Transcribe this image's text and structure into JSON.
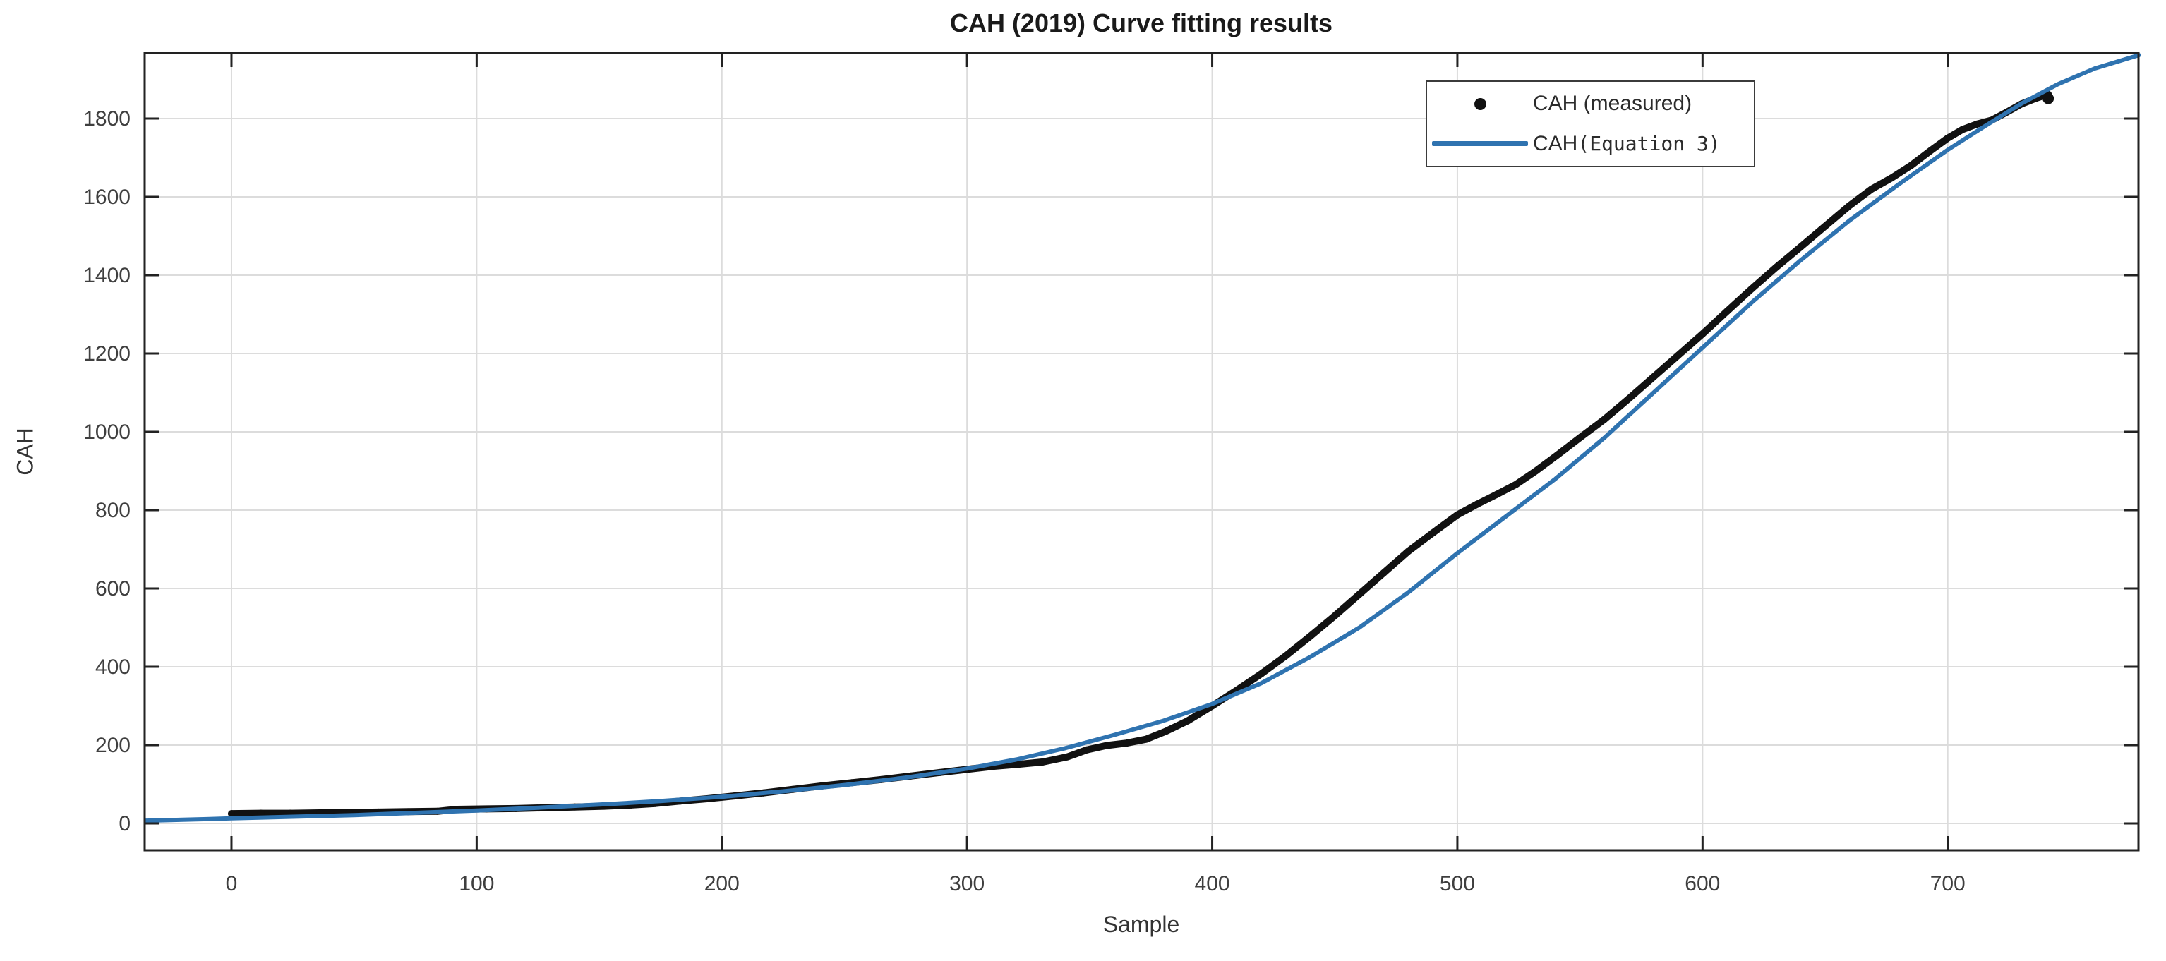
{
  "figure": {
    "background": "#ffffff"
  },
  "chart_data": {
    "type": "line",
    "title": "CAH (2019) Curve fitting results",
    "xlabel": "Sample",
    "ylabel": "CAH",
    "xlim": [
      -35.4,
      777.8
    ],
    "ylim": [
      -68.5,
      1967.6
    ],
    "x_ticks": [
      0,
      100,
      200,
      300,
      400,
      500,
      600,
      700
    ],
    "y_ticks": [
      0,
      200,
      400,
      600,
      800,
      1000,
      1200,
      1400,
      1600,
      1800
    ],
    "grid": true,
    "grid_color": "#dcdcdc",
    "axis_color": "#222222",
    "tick_label_color": "#3f3f3f",
    "legend": {
      "position": "northeast",
      "entries": [
        {
          "marker": "dot",
          "color": "#111111",
          "label": "CAH (measured)",
          "label_suffix": ""
        },
        {
          "marker": "line",
          "color": "#2f73b0",
          "label": "CAH",
          "label_suffix": "(Equation 3)"
        }
      ]
    },
    "series": [
      {
        "name": "CAH (measured)",
        "type": "scatter",
        "color": "#111111",
        "marker_size": 5,
        "points": [
          [
            0,
            25
          ],
          [
            12,
            26
          ],
          [
            24,
            26
          ],
          [
            36,
            27
          ],
          [
            48,
            28
          ],
          [
            60,
            29
          ],
          [
            72,
            30
          ],
          [
            84,
            31
          ],
          [
            92,
            36
          ],
          [
            104,
            37
          ],
          [
            116,
            38
          ],
          [
            128,
            40
          ],
          [
            140,
            42
          ],
          [
            152,
            44
          ],
          [
            163,
            47
          ],
          [
            173,
            51
          ],
          [
            183,
            57
          ],
          [
            194,
            63
          ],
          [
            205,
            70
          ],
          [
            217,
            78
          ],
          [
            229,
            87
          ],
          [
            241,
            96
          ],
          [
            253,
            104
          ],
          [
            265,
            112
          ],
          [
            277,
            121
          ],
          [
            289,
            130
          ],
          [
            300,
            138
          ],
          [
            311,
            146
          ],
          [
            321,
            151
          ],
          [
            331,
            157
          ],
          [
            341,
            170
          ],
          [
            349,
            188
          ],
          [
            357,
            199
          ],
          [
            365,
            205
          ],
          [
            373,
            215
          ],
          [
            381,
            235
          ],
          [
            390,
            262
          ],
          [
            400,
            300
          ],
          [
            410,
            340
          ],
          [
            420,
            382
          ],
          [
            430,
            428
          ],
          [
            440,
            478
          ],
          [
            450,
            530
          ],
          [
            460,
            585
          ],
          [
            470,
            640
          ],
          [
            480,
            695
          ],
          [
            490,
            742
          ],
          [
            500,
            788
          ],
          [
            508,
            815
          ],
          [
            516,
            840
          ],
          [
            524,
            866
          ],
          [
            532,
            900
          ],
          [
            541,
            942
          ],
          [
            550,
            985
          ],
          [
            560,
            1032
          ],
          [
            570,
            1085
          ],
          [
            580,
            1140
          ],
          [
            590,
            1195
          ],
          [
            600,
            1250
          ],
          [
            610,
            1308
          ],
          [
            620,
            1365
          ],
          [
            630,
            1420
          ],
          [
            640,
            1472
          ],
          [
            650,
            1525
          ],
          [
            660,
            1578
          ],
          [
            669,
            1620
          ],
          [
            677,
            1648
          ],
          [
            685,
            1680
          ],
          [
            693,
            1718
          ],
          [
            700,
            1750
          ],
          [
            706,
            1772
          ],
          [
            712,
            1786
          ],
          [
            718,
            1796
          ],
          [
            724,
            1816
          ],
          [
            730,
            1837
          ],
          [
            736,
            1852
          ],
          [
            741,
            1862
          ]
        ],
        "end_dot": [
          741,
          1862
        ]
      },
      {
        "name": "CAH(Equation 3)",
        "type": "line",
        "color": "#2f73b0",
        "line_width": 6,
        "points": [
          [
            -35,
            7
          ],
          [
            -10,
            11
          ],
          [
            0,
            13
          ],
          [
            25,
            17
          ],
          [
            50,
            21
          ],
          [
            75,
            27
          ],
          [
            100,
            33
          ],
          [
            125,
            40
          ],
          [
            150,
            48
          ],
          [
            175,
            57
          ],
          [
            200,
            68
          ],
          [
            225,
            82
          ],
          [
            250,
            98
          ],
          [
            275,
            117
          ],
          [
            300,
            140
          ],
          [
            320,
            163
          ],
          [
            340,
            192
          ],
          [
            360,
            226
          ],
          [
            380,
            262
          ],
          [
            400,
            305
          ],
          [
            420,
            358
          ],
          [
            440,
            425
          ],
          [
            460,
            500
          ],
          [
            480,
            590
          ],
          [
            500,
            690
          ],
          [
            520,
            785
          ],
          [
            540,
            880
          ],
          [
            560,
            985
          ],
          [
            580,
            1100
          ],
          [
            600,
            1215
          ],
          [
            620,
            1330
          ],
          [
            640,
            1438
          ],
          [
            660,
            1540
          ],
          [
            680,
            1632
          ],
          [
            700,
            1720
          ],
          [
            715,
            1780
          ],
          [
            730,
            1838
          ],
          [
            745,
            1888
          ],
          [
            760,
            1928
          ],
          [
            778,
            1962
          ]
        ]
      }
    ]
  }
}
